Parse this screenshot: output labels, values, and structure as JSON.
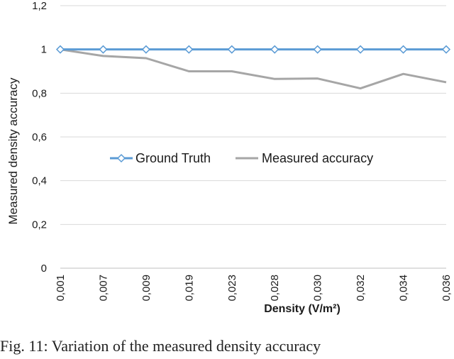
{
  "chart_data": {
    "type": "line",
    "categories": [
      "0,001",
      "0,007",
      "0,009",
      "0,019",
      "0,023",
      "0,028",
      "0,030",
      "0,032",
      "0,034",
      "0,036"
    ],
    "series": [
      {
        "name": "Ground Truth",
        "values": [
          1,
          1,
          1,
          1,
          1,
          1,
          1,
          1,
          1,
          1
        ],
        "color": "#5b9bd5",
        "marker": "diamond-open"
      },
      {
        "name": "Measured accuracy",
        "values": [
          1.0,
          0.97,
          0.96,
          0.9,
          0.9,
          0.865,
          0.867,
          0.822,
          0.888,
          0.85
        ],
        "color": "#a6a6a6",
        "marker": "none"
      }
    ],
    "ylim": [
      0,
      1.2
    ],
    "yticks": [
      "0",
      "0,2",
      "0,4",
      "0,6",
      "0,8",
      "1",
      "1,2"
    ],
    "ytick_values": [
      0,
      0.2,
      0.4,
      0.6,
      0.8,
      1.0,
      1.2
    ],
    "xlabel": "Density (V/m²)",
    "ylabel": "Measured density accuracy",
    "grid": "horizontal",
    "legend_placement": "center",
    "gridline_color": "#d9d9d9"
  },
  "caption": "Fig. 11: Variation of the measured density accuracy"
}
